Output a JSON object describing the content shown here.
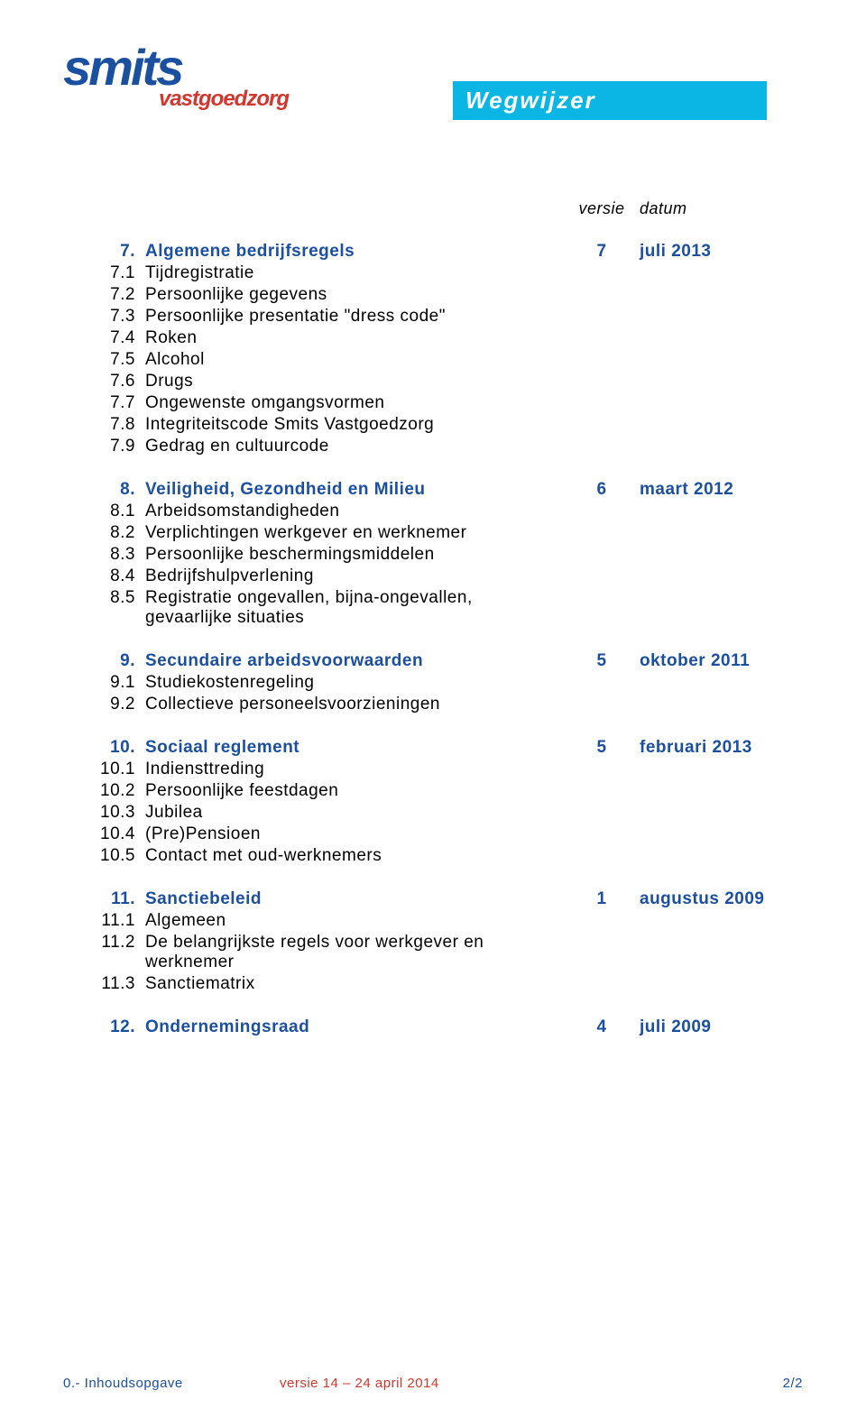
{
  "colors": {
    "brand_blue": "#1b4fa0",
    "brand_red": "#d3362d",
    "title_bg": "#0bb6e4",
    "title_fg": "#ffffff",
    "body_text": "#000000",
    "background": "#ffffff"
  },
  "logo": {
    "main": "smits",
    "sub": "vastgoedzorg"
  },
  "title": "Wegwijzer",
  "columns": {
    "versie": "versie",
    "datum": "datum"
  },
  "sections": [
    {
      "num": "7.",
      "title": "Algemene bedrijfsregels",
      "versie": "7",
      "datum": "juli 2013",
      "items": [
        {
          "num": "7.1",
          "text": "Tijdregistratie"
        },
        {
          "num": "7.2",
          "text": "Persoonlijke gegevens"
        },
        {
          "num": "7.3",
          "text": "Persoonlijke presentatie \"dress code\""
        },
        {
          "num": "7.4",
          "text": "Roken"
        },
        {
          "num": "7.5",
          "text": "Alcohol"
        },
        {
          "num": "7.6",
          "text": "Drugs"
        },
        {
          "num": "7.7",
          "text": "Ongewenste omgangsvormen"
        },
        {
          "num": "7.8",
          "text": "Integriteitscode Smits Vastgoedzorg"
        },
        {
          "num": "7.9",
          "text": "Gedrag en cultuurcode"
        }
      ]
    },
    {
      "num": "8.",
      "title": "Veiligheid, Gezondheid en Milieu",
      "versie": "6",
      "datum": "maart 2012",
      "items": [
        {
          "num": "8.1",
          "text": "Arbeidsomstandigheden"
        },
        {
          "num": "8.2",
          "text": "Verplichtingen werkgever en werknemer"
        },
        {
          "num": "8.3",
          "text": "Persoonlijke beschermingsmiddelen"
        },
        {
          "num": "8.4",
          "text": "Bedrijfshulpverlening"
        },
        {
          "num": "8.5",
          "text": "Registratie ongevallen, bijna-ongevallen, gevaarlijke situaties"
        }
      ]
    },
    {
      "num": "9.",
      "title": "Secundaire arbeidsvoorwaarden",
      "versie": "5",
      "datum": "oktober 2011",
      "items": [
        {
          "num": "9.1",
          "text": "Studiekostenregeling"
        },
        {
          "num": "9.2",
          "text": "Collectieve personeelsvoorzieningen"
        }
      ]
    },
    {
      "num": "10.",
      "title": "Sociaal reglement",
      "versie": "5",
      "datum": "februari 2013",
      "items": [
        {
          "num": "10.1",
          "text": "Indiensttreding"
        },
        {
          "num": "10.2",
          "text": "Persoonlijke feestdagen"
        },
        {
          "num": "10.3",
          "text": "Jubilea"
        },
        {
          "num": "10.4",
          "text": "(Pre)Pensioen"
        },
        {
          "num": "10.5",
          "text": "Contact met oud-werknemers"
        }
      ]
    },
    {
      "num": "11.",
      "title": "Sanctiebeleid",
      "versie": "1",
      "datum": "augustus 2009",
      "items": [
        {
          "num": "11.1",
          "text": "Algemeen"
        },
        {
          "num": "11.2",
          "text": "De belangrijkste regels voor werkgever en werknemer"
        },
        {
          "num": "11.3",
          "text": "Sanctiematrix"
        }
      ]
    },
    {
      "num": "12.",
      "title": "Ondernemingsraad",
      "versie": "4",
      "datum": "juli 2009",
      "items": []
    }
  ],
  "footer": {
    "left": "0.- Inhoudsopgave",
    "center": "versie 14 – 24 april 2014",
    "right": "2/2"
  }
}
